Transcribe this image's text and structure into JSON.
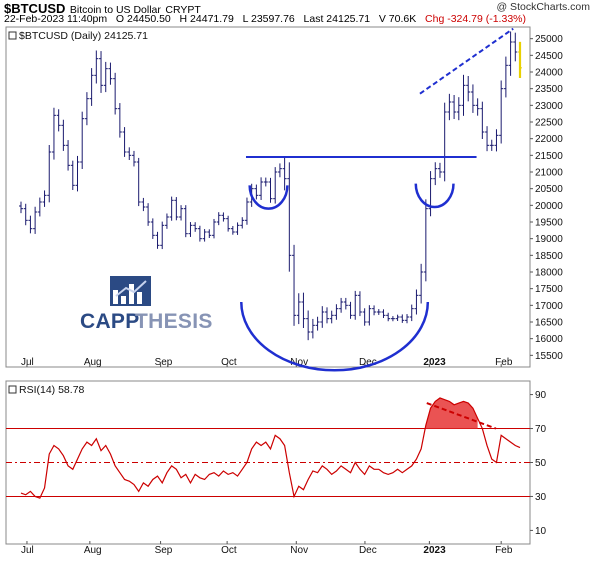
{
  "header": {
    "symbol": "$BTCUSD",
    "name": "Bitcoin to US Dollar",
    "exchange": "CRYPT",
    "credit": "@ StockCharts.com",
    "datetime": "22-Feb-2023 11:40pm",
    "open": "O 24450.50",
    "high": "H 24471.79",
    "low": "L 23597.76",
    "last": "Last 24125.71",
    "volume": "V 70.6K",
    "change": "Chg -324.79 (-1.33%)",
    "change_color": "#cc0000"
  },
  "logo": {
    "word1": "CAPP",
    "word2": "THESIS",
    "color1": "#2b4a84",
    "color2": "#8794b5"
  },
  "chart_data": [
    {
      "type": "ohlc",
      "legend": "$BTCUSD (Daily) 24125.71",
      "x_tick_labels": [
        "Jul",
        "Aug",
        "Sep",
        "Oct",
        "Nov",
        "Dec",
        "2023",
        "Feb"
      ],
      "y_ticks": [
        15500,
        16000,
        16500,
        17000,
        17500,
        18000,
        18500,
        19000,
        19500,
        20000,
        20500,
        21000,
        21500,
        22000,
        22500,
        23000,
        23500,
        24000,
        24500,
        25000
      ],
      "ylim": [
        15150,
        25350
      ],
      "series_color": "#1a1a6e",
      "annotation_color": "#1f2fd0",
      "closes": [
        19900,
        19550,
        19300,
        19800,
        20100,
        20300,
        21600,
        22700,
        22400,
        21800,
        21200,
        20600,
        21300,
        22600,
        23200,
        23900,
        24400,
        23600,
        24100,
        23800,
        22900,
        22200,
        21600,
        21500,
        21300,
        20100,
        19950,
        19500,
        19100,
        18800,
        19400,
        19650,
        20150,
        19650,
        19900,
        19150,
        19400,
        19300,
        19000,
        19200,
        19100,
        19500,
        19700,
        19600,
        19300,
        19200,
        19400,
        19550,
        20100,
        20500,
        20300,
        20700,
        20700,
        20200,
        21000,
        21100,
        20800,
        18500,
        16700,
        17100,
        16600,
        16200,
        16400,
        16500,
        16800,
        16600,
        16700,
        16900,
        17100,
        17000,
        16700,
        17300,
        16800,
        16500,
        16900,
        16800,
        16800,
        16700,
        16600,
        16600,
        16650,
        16550,
        16650,
        16900,
        17300,
        18000,
        19900,
        20800,
        21100,
        21000,
        22800,
        23100,
        22800,
        23000,
        23600,
        23400,
        23000,
        22900,
        22200,
        21800,
        21800,
        22100,
        23500,
        24200,
        24900,
        24600,
        24125
      ],
      "ranges": [
        380,
        420,
        400,
        450,
        380,
        420,
        600,
        650,
        520,
        480,
        450,
        400,
        520,
        600,
        560,
        620,
        700,
        650,
        580,
        520,
        500,
        480,
        420,
        400,
        380,
        350,
        350,
        330,
        310,
        300,
        320,
        300,
        320,
        280,
        300,
        300,
        280,
        270,
        250,
        250,
        230,
        260,
        270,
        250,
        250,
        230,
        250,
        270,
        380,
        420,
        350,
        400,
        380,
        350,
        420,
        450,
        1000,
        1400,
        900,
        750,
        800,
        700,
        550,
        450,
        500,
        400,
        400,
        380,
        350,
        350,
        300,
        380,
        350,
        320,
        300,
        280,
        250,
        230,
        220,
        220,
        200,
        220,
        250,
        350,
        500,
        700,
        800,
        650,
        550,
        500,
        800,
        700,
        600,
        700,
        900,
        800,
        650,
        600,
        600,
        500,
        480,
        520,
        700,
        750,
        900,
        800,
        870
      ],
      "annotations": [
        {
          "kind": "hline",
          "label": "resistance",
          "x_range": [
            0.458,
            0.898
          ],
          "y": 21450
        },
        {
          "kind": "trendline",
          "label": "upper rising line",
          "points": [
            [
              0.79,
              23350
            ],
            [
              0.968,
              25300
            ]
          ]
        },
        {
          "kind": "arc",
          "label": "left small cup",
          "cx": 0.501,
          "cy": 20600,
          "rx": 0.036,
          "ry": 700
        },
        {
          "kind": "arc",
          "label": "large cup",
          "cx": 0.627,
          "cy": 17100,
          "rx": 0.178,
          "ry": 2050
        },
        {
          "kind": "arc",
          "label": "right small cup",
          "cx": 0.818,
          "cy": 20650,
          "rx": 0.036,
          "ry": 700
        }
      ]
    },
    {
      "type": "line",
      "legend": "RSI(14) 58.78",
      "x_tick_labels": [
        "Jul",
        "Aug",
        "Sep",
        "Oct",
        "Nov",
        "Dec",
        "2023",
        "Feb"
      ],
      "y_ticks": [
        10,
        30,
        50,
        70,
        90
      ],
      "ylim": [
        2,
        98
      ],
      "color": "#cc0000",
      "fill_color": "#e84040",
      "overbought": 70,
      "midline": 50,
      "oversold": 30,
      "values": [
        32,
        31,
        33,
        30,
        29,
        35,
        55,
        60,
        58,
        54,
        48,
        46,
        52,
        58,
        62,
        60,
        64,
        57,
        60,
        55,
        48,
        44,
        40,
        39,
        37,
        33,
        38,
        36,
        40,
        42,
        38,
        44,
        48,
        46,
        41,
        43,
        38,
        43,
        41,
        40,
        43,
        44,
        42,
        45,
        43,
        44,
        42,
        46,
        50,
        58,
        62,
        60,
        62,
        58,
        66,
        64,
        60,
        44,
        30,
        36,
        34,
        40,
        45,
        44,
        48,
        46,
        43,
        45,
        48,
        46,
        44,
        50,
        46,
        43,
        48,
        46,
        46,
        44,
        43,
        44,
        46,
        44,
        46,
        48,
        52,
        58,
        72,
        82,
        86,
        88,
        87,
        86,
        84,
        85,
        86,
        85,
        82,
        76,
        70,
        60,
        52,
        50,
        66,
        64,
        62,
        60,
        58.78
      ],
      "resistance_line": {
        "x_range": [
          0.803,
          0.935
        ],
        "y": [
          85,
          70
        ]
      }
    }
  ]
}
